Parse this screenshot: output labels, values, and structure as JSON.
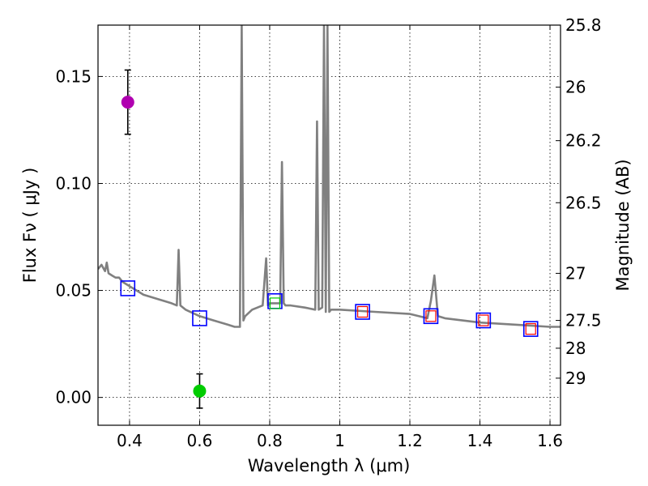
{
  "chart_data": {
    "type": "line",
    "xlabel": "Wavelength  λ (μm)",
    "ylabel": "Flux  Fν  ( μJy )",
    "y2label": "Magnitude (AB)",
    "xlim": [
      0.31,
      1.63
    ],
    "ylim": [
      -0.013,
      0.174
    ],
    "xticks": [
      0.4,
      0.6,
      0.8,
      1.0,
      1.2,
      1.4,
      1.6
    ],
    "xtick_labels": [
      "0.4",
      "0.6",
      "0.8",
      "1",
      "1.2",
      "1.4",
      "1.6"
    ],
    "yticks": [
      0.0,
      0.05,
      0.1,
      0.15
    ],
    "ytick_labels": [
      "0.00",
      "0.05",
      "0.10",
      "0.15"
    ],
    "y2ticks": [
      {
        "label": "25.8",
        "flux": 0.174
      },
      {
        "label": "26",
        "flux": 0.145
      },
      {
        "label": "26.2",
        "flux": 0.12
      },
      {
        "label": "26.5",
        "flux": 0.091
      },
      {
        "label": "27",
        "flux": 0.058
      },
      {
        "label": "27.5",
        "flux": 0.036
      },
      {
        "label": "28",
        "flux": 0.023
      },
      {
        "label": "29",
        "flux": 0.009
      }
    ],
    "grid": true,
    "series": [
      {
        "kind": "line",
        "color": "#808080",
        "x": [
          0.31,
          0.32,
          0.33,
          0.335,
          0.34,
          0.35,
          0.36,
          0.37,
          0.38,
          0.39,
          0.4,
          0.42,
          0.44,
          0.46,
          0.48,
          0.5,
          0.52,
          0.535,
          0.54,
          0.545,
          0.56,
          0.6,
          0.64,
          0.68,
          0.7,
          0.715,
          0.72,
          0.725,
          0.73,
          0.75,
          0.78,
          0.79,
          0.795,
          0.8,
          0.82,
          0.83,
          0.835,
          0.84,
          0.845,
          0.86,
          0.9,
          0.93,
          0.935,
          0.94,
          0.95,
          0.955,
          0.96,
          0.965,
          0.97,
          0.975,
          1.0,
          1.1,
          1.2,
          1.25,
          1.26,
          1.27,
          1.28,
          1.3,
          1.4,
          1.5,
          1.6,
          1.63
        ],
        "y": [
          0.06,
          0.062,
          0.059,
          0.063,
          0.058,
          0.057,
          0.056,
          0.056,
          0.054,
          0.053,
          0.052,
          0.05,
          0.048,
          0.047,
          0.046,
          0.045,
          0.044,
          0.043,
          0.069,
          0.043,
          0.041,
          0.038,
          0.036,
          0.034,
          0.033,
          0.033,
          0.174,
          0.036,
          0.038,
          0.041,
          0.043,
          0.065,
          0.043,
          0.044,
          0.044,
          0.044,
          0.11,
          0.044,
          0.043,
          0.043,
          0.042,
          0.041,
          0.129,
          0.041,
          0.042,
          0.174,
          0.04,
          0.174,
          0.04,
          0.041,
          0.041,
          0.04,
          0.039,
          0.037,
          0.045,
          0.057,
          0.038,
          0.037,
          0.035,
          0.034,
          0.033,
          0.033
        ]
      },
      {
        "kind": "squares",
        "edge_color": "#0000ff",
        "x": [
          0.395,
          0.6,
          0.815,
          1.065,
          1.26,
          1.41,
          1.545
        ],
        "y": [
          0.051,
          0.037,
          0.045,
          0.04,
          0.038,
          0.036,
          0.032
        ]
      },
      {
        "kind": "model_squares",
        "colors": [
          "#ff0000",
          "#ff0000",
          "#00cc00",
          "#ff0000",
          "#ff0000",
          "#ff0000",
          "#ff0000"
        ],
        "x": [
          0.815,
          1.065,
          1.26,
          1.41,
          1.545
        ],
        "y": [
          0.044,
          0.04,
          0.038,
          0.036,
          0.032
        ],
        "color_list": [
          "#00cc00",
          "#ff0000",
          "#ff0000",
          "#ff0000",
          "#ff0000"
        ]
      },
      {
        "kind": "points",
        "x": [
          0.395,
          0.6
        ],
        "y": [
          0.138,
          0.003
        ],
        "yerr": [
          0.015,
          0.008
        ],
        "colors": [
          "#b000b0",
          "#00cc00"
        ]
      }
    ]
  }
}
